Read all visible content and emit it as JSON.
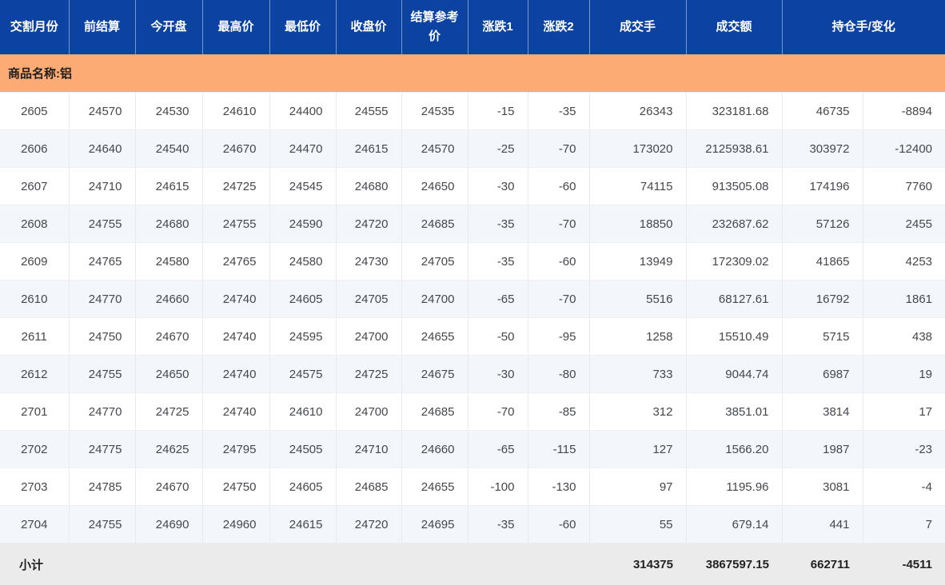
{
  "columns": [
    {
      "key": "delivery_month",
      "label": "交割月份"
    },
    {
      "key": "prev_settlement",
      "label": "前结算"
    },
    {
      "key": "open",
      "label": "今开盘"
    },
    {
      "key": "high",
      "label": "最高价"
    },
    {
      "key": "low",
      "label": "最低价"
    },
    {
      "key": "close",
      "label": "收盘价"
    },
    {
      "key": "settlement_ref",
      "label": "结算参考价"
    },
    {
      "key": "change1",
      "label": "涨跌1"
    },
    {
      "key": "change2",
      "label": "涨跌2"
    },
    {
      "key": "volume",
      "label": "成交手"
    },
    {
      "key": "turnover",
      "label": "成交额"
    },
    {
      "key": "open_interest_change",
      "label": "持仓手/变化"
    }
  ],
  "column_keys": [
    "delivery_month",
    "prev_settlement",
    "open",
    "high",
    "low",
    "close",
    "settlement_ref",
    "change1",
    "change2",
    "volume",
    "turnover",
    "open_interest",
    "oi_change"
  ],
  "product_band": {
    "label": "商品名称:铝"
  },
  "rows": [
    [
      "2605",
      "24570",
      "24530",
      "24610",
      "24400",
      "24555",
      "24535",
      "-15",
      "-35",
      "26343",
      "323181.68",
      "46735",
      "-8894"
    ],
    [
      "2606",
      "24640",
      "24540",
      "24670",
      "24470",
      "24615",
      "24570",
      "-25",
      "-70",
      "173020",
      "2125938.61",
      "303972",
      "-12400"
    ],
    [
      "2607",
      "24710",
      "24615",
      "24725",
      "24545",
      "24680",
      "24650",
      "-30",
      "-60",
      "74115",
      "913505.08",
      "174196",
      "7760"
    ],
    [
      "2608",
      "24755",
      "24680",
      "24755",
      "24590",
      "24720",
      "24685",
      "-35",
      "-70",
      "18850",
      "232687.62",
      "57126",
      "2455"
    ],
    [
      "2609",
      "24765",
      "24580",
      "24765",
      "24580",
      "24730",
      "24705",
      "-35",
      "-60",
      "13949",
      "172309.02",
      "41865",
      "4253"
    ],
    [
      "2610",
      "24770",
      "24660",
      "24740",
      "24605",
      "24705",
      "24700",
      "-65",
      "-70",
      "5516",
      "68127.61",
      "16792",
      "1861"
    ],
    [
      "2611",
      "24750",
      "24670",
      "24740",
      "24595",
      "24700",
      "24655",
      "-50",
      "-95",
      "1258",
      "15510.49",
      "5715",
      "438"
    ],
    [
      "2612",
      "24755",
      "24650",
      "24740",
      "24575",
      "24725",
      "24675",
      "-30",
      "-80",
      "733",
      "9044.74",
      "6987",
      "19"
    ],
    [
      "2701",
      "24770",
      "24725",
      "24740",
      "24610",
      "24700",
      "24685",
      "-70",
      "-85",
      "312",
      "3851.01",
      "3814",
      "17"
    ],
    [
      "2702",
      "24775",
      "24625",
      "24795",
      "24505",
      "24710",
      "24660",
      "-65",
      "-115",
      "127",
      "1566.20",
      "1987",
      "-23"
    ],
    [
      "2703",
      "24785",
      "24670",
      "24750",
      "24605",
      "24685",
      "24655",
      "-100",
      "-130",
      "97",
      "1195.96",
      "3081",
      "-4"
    ],
    [
      "2704",
      "24755",
      "24690",
      "24960",
      "24615",
      "24720",
      "24695",
      "-35",
      "-60",
      "55",
      "679.14",
      "441",
      "7"
    ]
  ],
  "footer": {
    "label": "小计",
    "volume_total": "314375",
    "turnover_total": "3867597.15",
    "open_interest_total": "662711",
    "oi_change_total": "-4511"
  },
  "colors": {
    "header_bg": "#0c42a1",
    "header_text": "#ffffff",
    "product_band_bg": "#fbab73",
    "row_stripe": "#f3f6fb",
    "row_plain": "#ffffff",
    "footer_bg": "#ebebeb",
    "data_text": "#45474d"
  }
}
